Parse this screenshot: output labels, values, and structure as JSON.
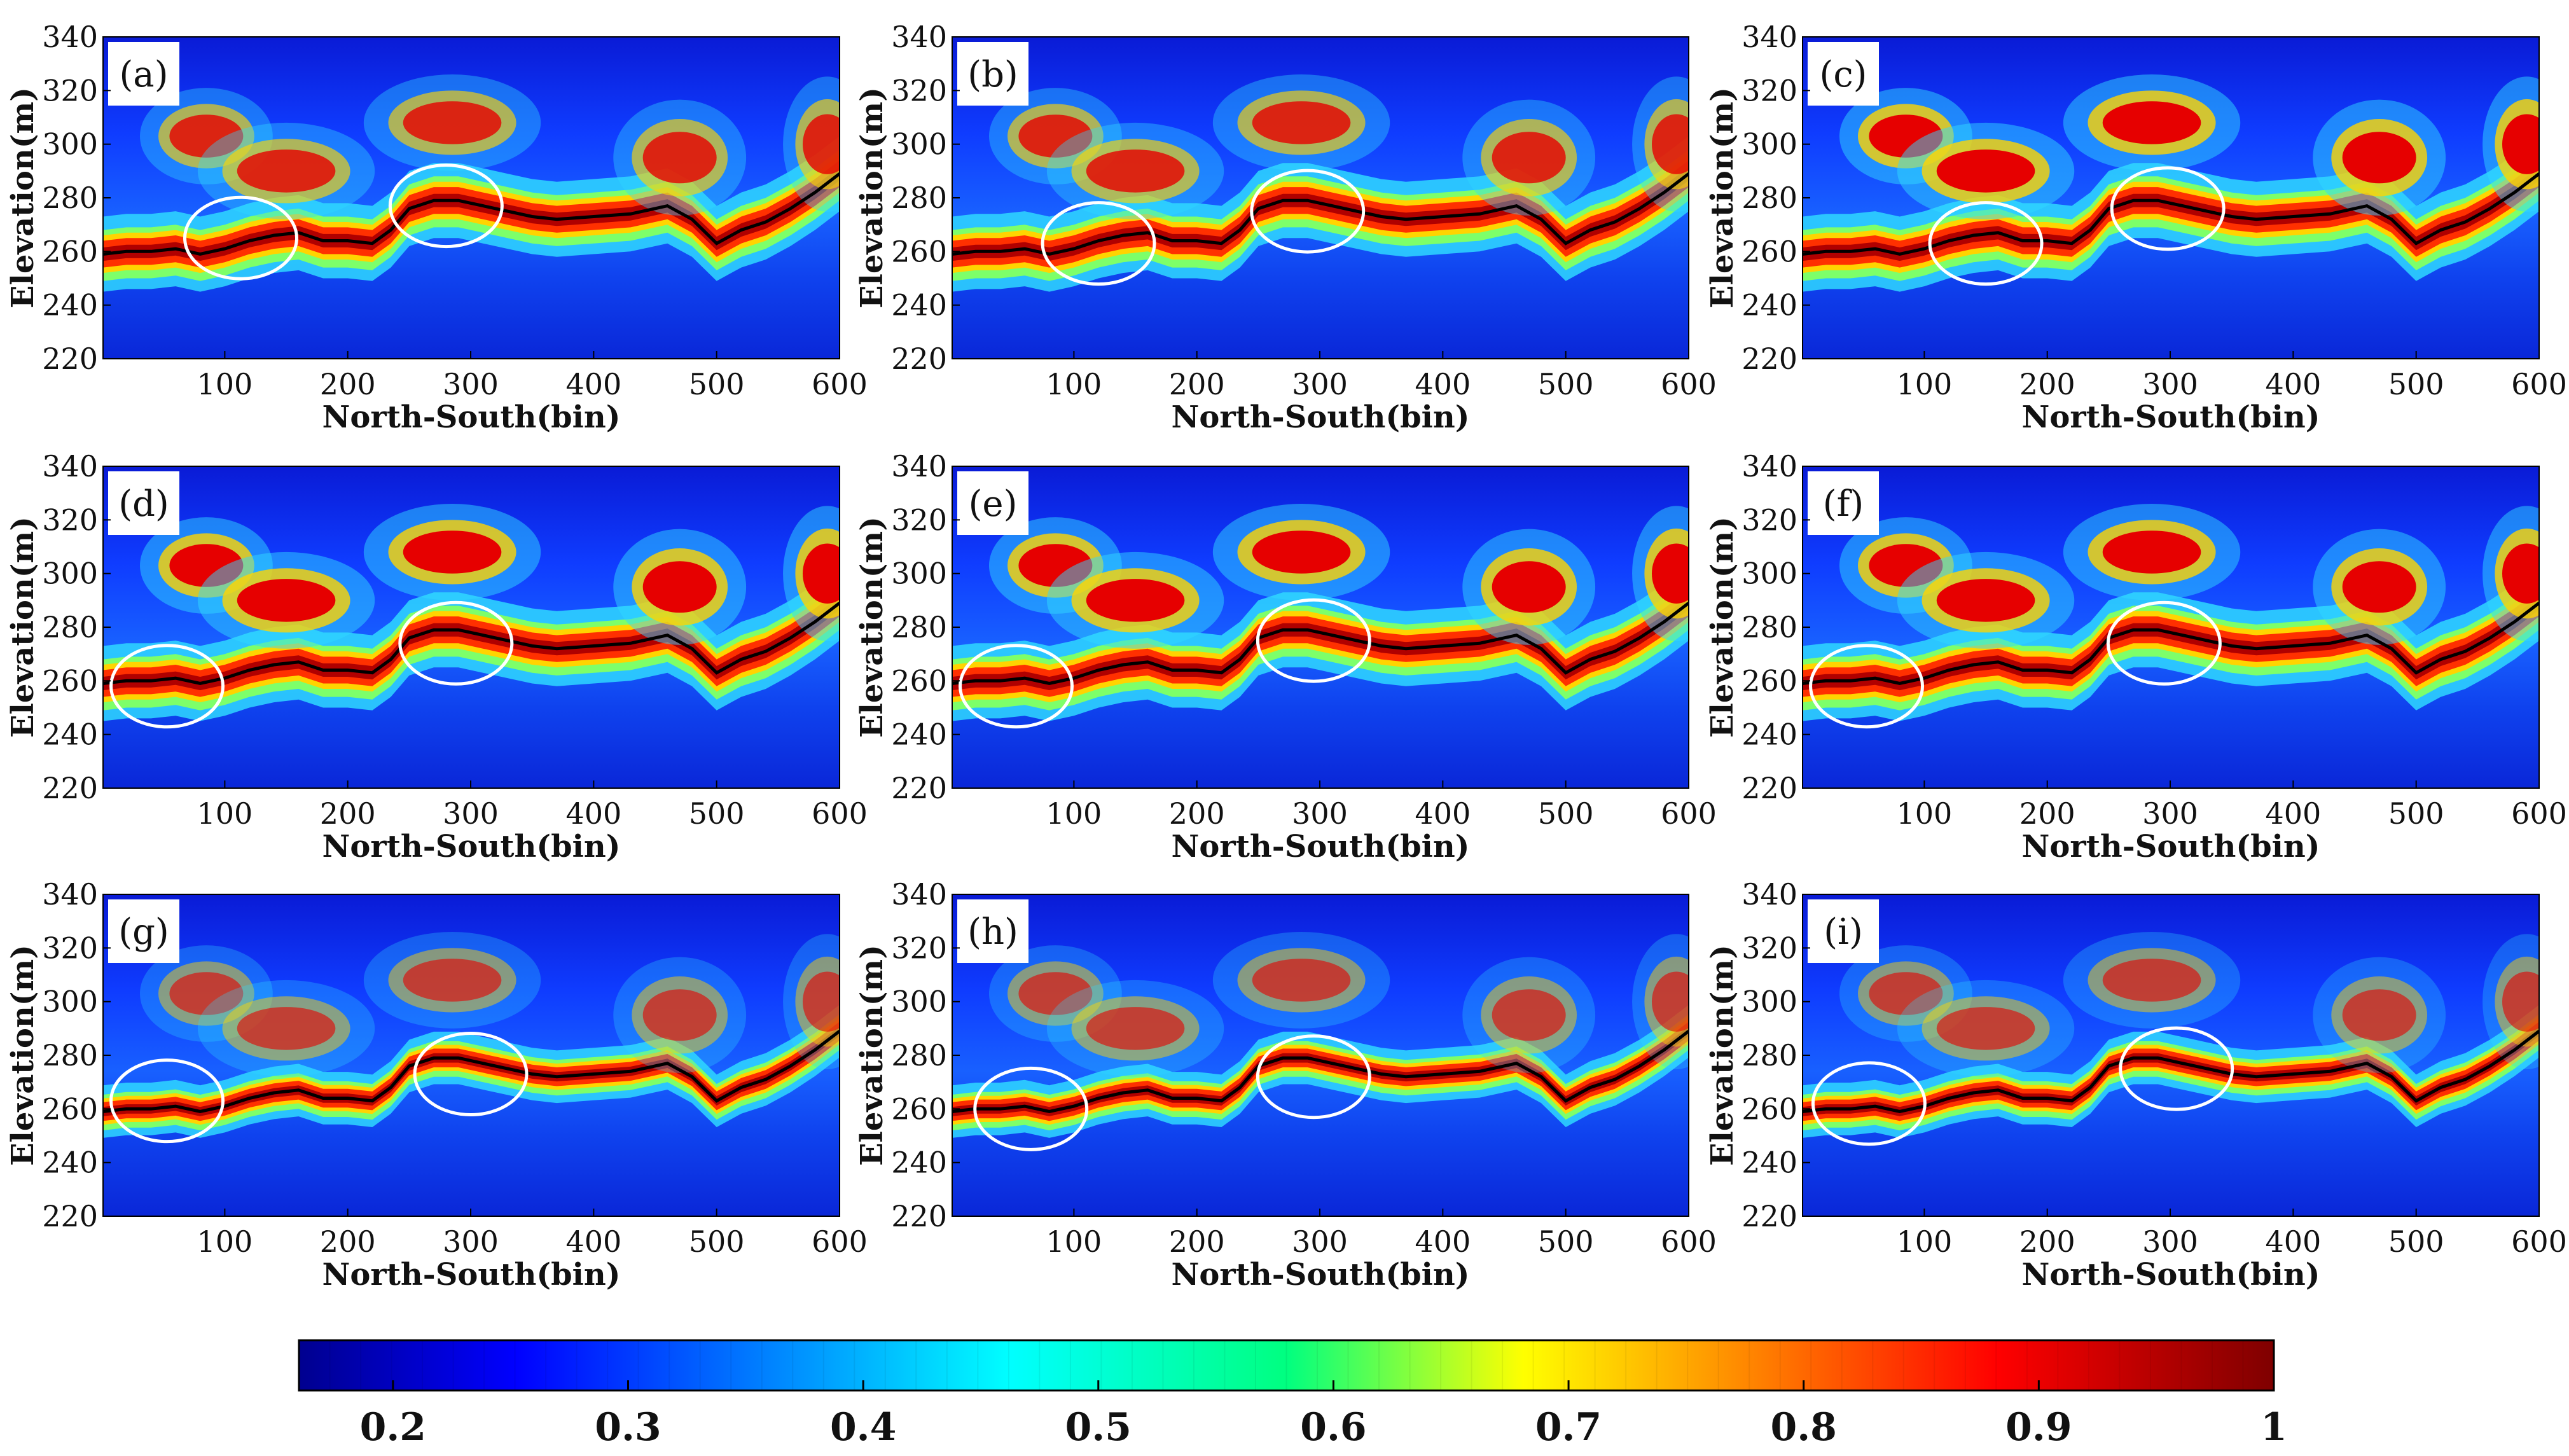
{
  "chart_data": {
    "type": "heatmap",
    "shared": {
      "xlabel": "North-South(bin)",
      "ylabel": "Elevation(m)",
      "xlim": [
        1,
        600
      ],
      "ylim": [
        220,
        340
      ],
      "xticks": [
        100,
        200,
        300,
        400,
        500,
        600
      ],
      "yticks": [
        220,
        240,
        260,
        280,
        300,
        320,
        340
      ],
      "colormap": "jet",
      "colorbar": {
        "range": [
          0.16,
          1.0
        ],
        "ticks": [
          0.2,
          0.3,
          0.4,
          0.5,
          0.6,
          0.7,
          0.8,
          0.9,
          "1"
        ]
      }
    },
    "reference_line": {
      "description": "black surface elevation line",
      "x": [
        1,
        20,
        40,
        60,
        80,
        100,
        120,
        140,
        160,
        180,
        200,
        220,
        235,
        250,
        270,
        290,
        310,
        330,
        350,
        370,
        400,
        430,
        460,
        480,
        500,
        520,
        540,
        560,
        580,
        600
      ],
      "elevation": [
        259,
        260,
        260,
        261,
        259,
        261,
        264,
        266,
        267,
        264,
        264,
        263,
        268,
        276,
        279,
        279,
        277,
        275,
        273,
        272,
        273,
        274,
        277,
        272,
        263,
        268,
        271,
        276,
        282,
        289
      ]
    },
    "panels": [
      {
        "label": "(a)",
        "ellipses": [
          {
            "x": 113,
            "elevation": 265
          },
          {
            "x": 280,
            "elevation": 277
          }
        ]
      },
      {
        "label": "(b)",
        "ellipses": [
          {
            "x": 120,
            "elevation": 263
          },
          {
            "x": 290,
            "elevation": 275
          }
        ]
      },
      {
        "label": "(c)",
        "ellipses": [
          {
            "x": 150,
            "elevation": 263
          },
          {
            "x": 298,
            "elevation": 276
          }
        ]
      },
      {
        "label": "(d)",
        "ellipses": [
          {
            "x": 53,
            "elevation": 258
          },
          {
            "x": 288,
            "elevation": 274
          }
        ]
      },
      {
        "label": "(e)",
        "ellipses": [
          {
            "x": 53,
            "elevation": 258
          },
          {
            "x": 295,
            "elevation": 275
          }
        ]
      },
      {
        "label": "(f)",
        "ellipses": [
          {
            "x": 53,
            "elevation": 258
          },
          {
            "x": 295,
            "elevation": 274
          }
        ]
      },
      {
        "label": "(g)",
        "ellipses": [
          {
            "x": 53,
            "elevation": 263
          },
          {
            "x": 300,
            "elevation": 273
          }
        ]
      },
      {
        "label": "(h)",
        "ellipses": [
          {
            "x": 65,
            "elevation": 260
          },
          {
            "x": 295,
            "elevation": 272
          }
        ]
      },
      {
        "label": "(i)",
        "ellipses": [
          {
            "x": 55,
            "elevation": 262
          },
          {
            "x": 305,
            "elevation": 275
          }
        ]
      }
    ]
  }
}
